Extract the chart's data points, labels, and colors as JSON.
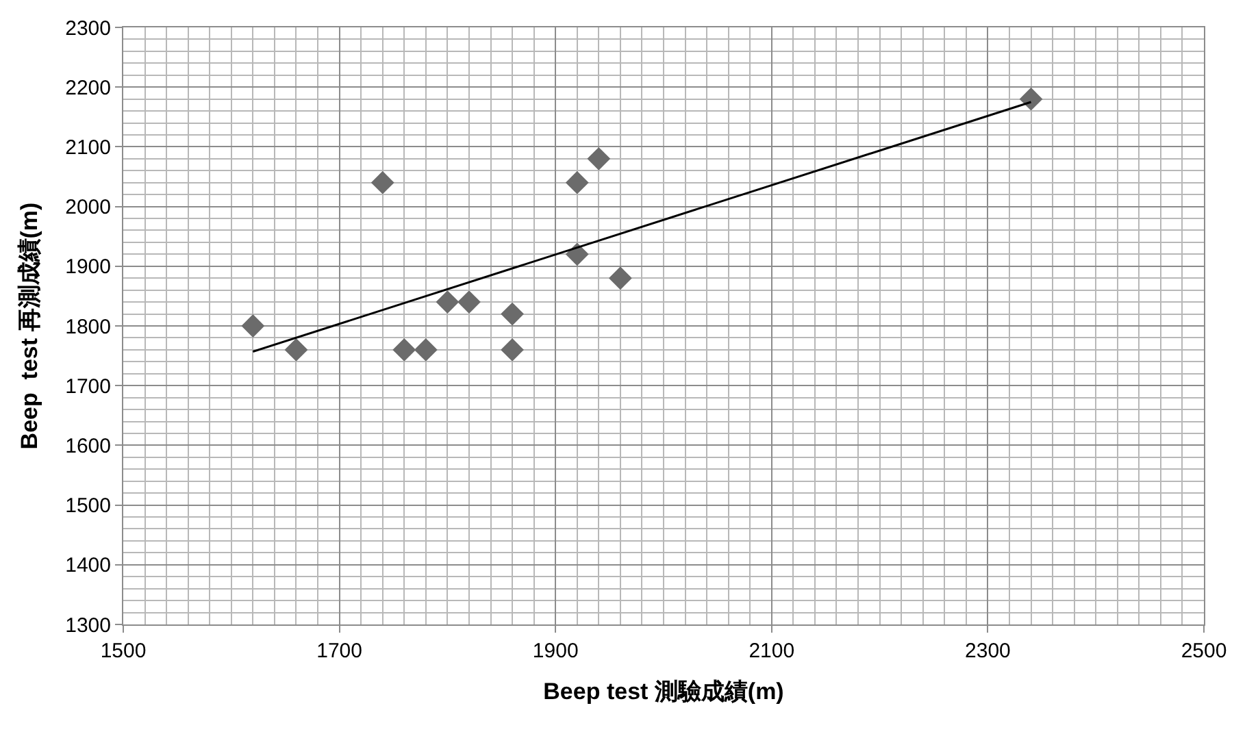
{
  "chart_data": {
    "type": "scatter",
    "xlabel": "Beep test 測驗成績(m)",
    "ylabel": "Beep  test 再測成績(m)",
    "xlim": [
      1500,
      2500
    ],
    "xticks": [
      1500,
      1700,
      1900,
      2100,
      2300,
      2500
    ],
    "ylim": [
      1300,
      2300
    ],
    "yticks": [
      1300,
      1400,
      1500,
      1600,
      1700,
      1800,
      1900,
      2000,
      2100,
      2200,
      2300
    ],
    "grid": true,
    "marker": "diamond",
    "series": [
      {
        "color": "#6b6b6b",
        "x": [
          1620,
          1660,
          1740,
          1760,
          1780,
          1800,
          1820,
          1860,
          1860,
          1920,
          1920,
          1940,
          1960,
          2340
        ],
        "values": [
          1800,
          1760,
          2040,
          1760,
          1760,
          1840,
          1840,
          1820,
          1760,
          2040,
          1920,
          2080,
          1880,
          2180
        ]
      },
      {
        "type": "line",
        "color": "#000000",
        "x": [
          1620,
          2340
        ],
        "values": [
          1757,
          2175
        ],
        "marker": "none",
        "line_style": "solid"
      }
    ]
  }
}
